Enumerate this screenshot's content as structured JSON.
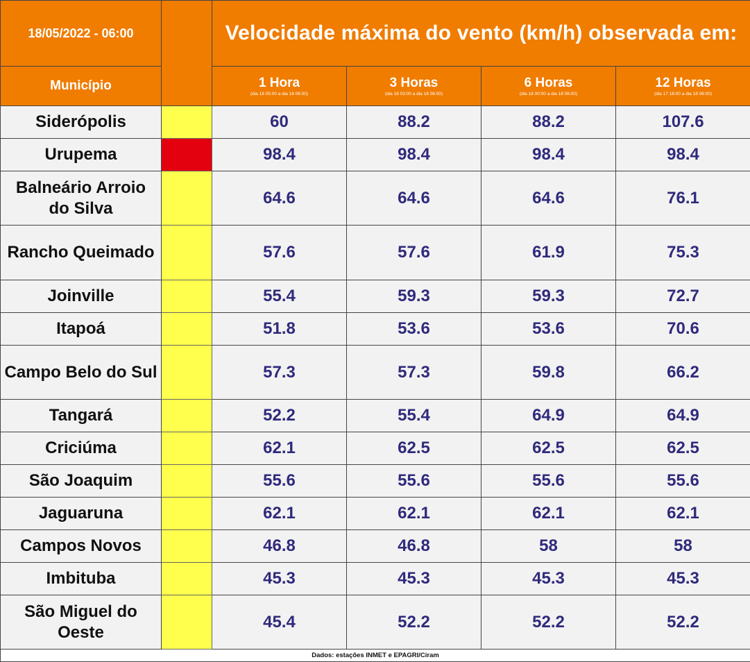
{
  "header": {
    "date": "18/05/2022 - 06:00",
    "title": "Velocidade máxima do vento (km/h) observada em:",
    "municipio_label": "Município"
  },
  "periods": [
    {
      "label": "1 Hora",
      "sub": "(dia 18 05:00 a dia 18 06:00)"
    },
    {
      "label": "3 Horas",
      "sub": "(dia 18 03:00 a dia 18 06:00)"
    },
    {
      "label": "6 Horas",
      "sub": "(dia 18 00:00 a dia 18 06:00)"
    },
    {
      "label": "12 Horas",
      "sub": "(dia 17 18:00 a dia 18 06:00)"
    }
  ],
  "level_colors": {
    "yellow": "#ffff4d",
    "red": "#e3000f"
  },
  "rows": [
    {
      "municipio": "Siderópolis",
      "level": "yellow",
      "values": [
        "60",
        "88.2",
        "88.2",
        "107.6"
      ]
    },
    {
      "municipio": "Urupema",
      "level": "red",
      "values": [
        "98.4",
        "98.4",
        "98.4",
        "98.4"
      ]
    },
    {
      "municipio": "Balneário Arroio do Silva",
      "level": "yellow",
      "values": [
        "64.6",
        "64.6",
        "64.6",
        "76.1"
      ]
    },
    {
      "municipio": "Rancho Queimado",
      "level": "yellow",
      "values": [
        "57.6",
        "57.6",
        "61.9",
        "75.3"
      ]
    },
    {
      "municipio": "Joinville",
      "level": "yellow",
      "values": [
        "55.4",
        "59.3",
        "59.3",
        "72.7"
      ]
    },
    {
      "municipio": "Itapoá",
      "level": "yellow",
      "values": [
        "51.8",
        "53.6",
        "53.6",
        "70.6"
      ]
    },
    {
      "municipio": "Campo Belo do Sul",
      "level": "yellow",
      "values": [
        "57.3",
        "57.3",
        "59.8",
        "66.2"
      ]
    },
    {
      "municipio": "Tangará",
      "level": "yellow",
      "values": [
        "52.2",
        "55.4",
        "64.9",
        "64.9"
      ]
    },
    {
      "municipio": "Criciúma",
      "level": "yellow",
      "values": [
        "62.1",
        "62.5",
        "62.5",
        "62.5"
      ]
    },
    {
      "municipio": "São Joaquim",
      "level": "yellow",
      "values": [
        "55.6",
        "55.6",
        "55.6",
        "55.6"
      ]
    },
    {
      "municipio": "Jaguaruna",
      "level": "yellow",
      "values": [
        "62.1",
        "62.1",
        "62.1",
        "62.1"
      ]
    },
    {
      "municipio": "Campos Novos",
      "level": "yellow",
      "values": [
        "46.8",
        "46.8",
        "58",
        "58"
      ]
    },
    {
      "municipio": "Imbituba",
      "level": "yellow",
      "values": [
        "45.3",
        "45.3",
        "45.3",
        "45.3"
      ]
    },
    {
      "municipio": "São Miguel do Oeste",
      "level": "yellow",
      "values": [
        "45.4",
        "52.2",
        "52.2",
        "52.2"
      ]
    }
  ],
  "footer": "Dados: estações INMET e EPAGRI/Ciram"
}
